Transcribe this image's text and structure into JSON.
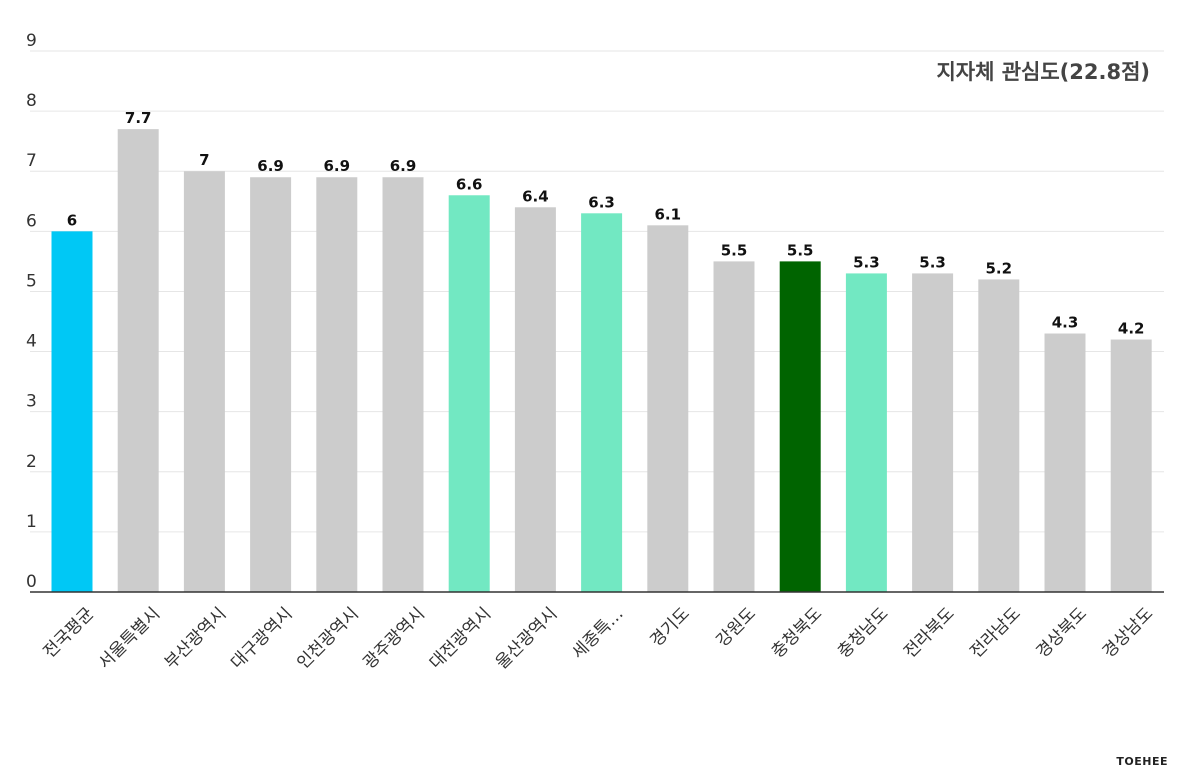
{
  "chart_data": {
    "type": "bar",
    "title": "지자체 관심도(22.8점)",
    "xlabel": "",
    "ylabel": "",
    "ylim": [
      0,
      9
    ],
    "yticks": [
      0,
      1,
      2,
      3,
      4,
      5,
      6,
      7,
      8,
      9
    ],
    "grid": true,
    "categories": [
      "전국평균",
      "서울특별시",
      "부산광역시",
      "대구광역시",
      "인천광역시",
      "광주광역시",
      "대전광역시",
      "울산광역시",
      "세종특…",
      "경기도",
      "강원도",
      "충청북도",
      "충청남도",
      "전라북도",
      "전라남도",
      "경상북도",
      "경상남도"
    ],
    "values": [
      6,
      7.7,
      7,
      6.9,
      6.9,
      6.9,
      6.6,
      6.4,
      6.3,
      6.1,
      5.5,
      5.5,
      5.3,
      5.3,
      5.2,
      4.3,
      4.2
    ],
    "value_labels": [
      "6",
      "7.7",
      "7",
      "6.9",
      "6.9",
      "6.9",
      "6.6",
      "6.4",
      "6.3",
      "6.1",
      "5.5",
      "5.5",
      "5.3",
      "5.3",
      "5.2",
      "4.3",
      "4.2"
    ],
    "bar_colors": [
      "#00c8f5",
      "#cccccc",
      "#cccccc",
      "#cccccc",
      "#cccccc",
      "#cccccc",
      "#72e8c2",
      "#cccccc",
      "#72e8c2",
      "#cccccc",
      "#cccccc",
      "#006400",
      "#72e8c2",
      "#cccccc",
      "#cccccc",
      "#cccccc",
      "#cccccc"
    ]
  },
  "brand": "TOEHEE"
}
